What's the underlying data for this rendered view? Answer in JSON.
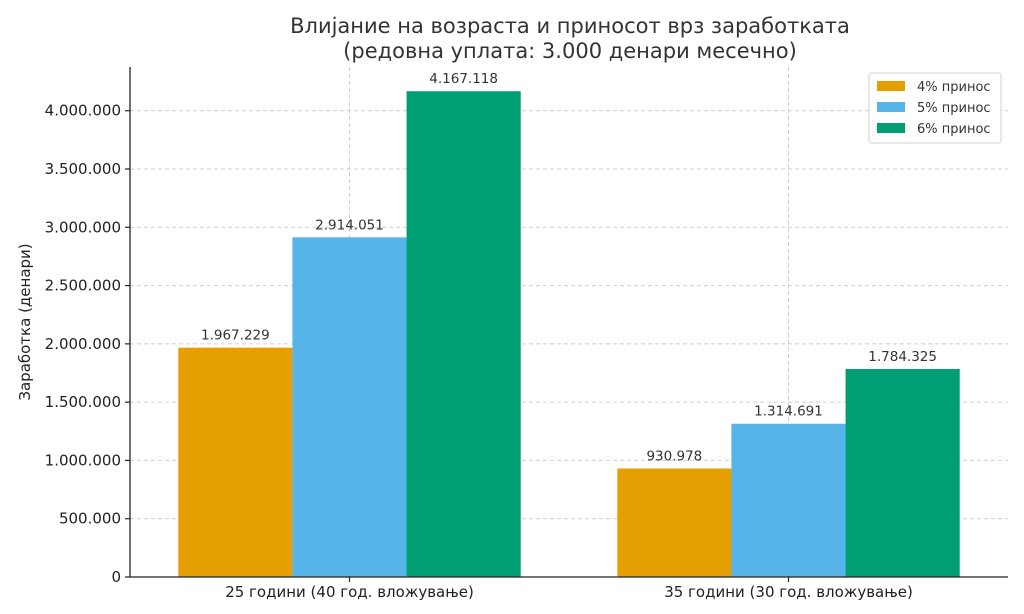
{
  "chart_data": {
    "type": "bar",
    "title_line1": "Влијание на возраста и приносот врз заработката",
    "title_line2": "(редовна уплата: 3.000 денари месечно)",
    "xlabel": "",
    "ylabel": "Заработка (денари)",
    "categories": [
      "25 години (40 год. вложување)",
      "35 години (30 год. вложување)"
    ],
    "series": [
      {
        "name": "4% принос",
        "color": "#E69F00",
        "values": [
          1967229,
          930978
        ],
        "labels": [
          "1.967.229",
          "930.978"
        ]
      },
      {
        "name": "5% принос",
        "color": "#56B4E9",
        "values": [
          2914051,
          1314691
        ],
        "labels": [
          "2.914.051",
          "1.314.691"
        ]
      },
      {
        "name": "6% принос",
        "color": "#009E73",
        "values": [
          4167118,
          1784325
        ],
        "labels": [
          "4.167.118",
          "1.784.325"
        ]
      }
    ],
    "ylim": [
      0,
      4375000
    ],
    "yticks": [
      0,
      500000,
      1000000,
      1500000,
      2000000,
      2500000,
      3000000,
      3500000,
      4000000
    ],
    "ytick_labels": [
      "0",
      "500.000",
      "1.000.000",
      "1.500.000",
      "2.000.000",
      "2.500.000",
      "3.000.000",
      "3.500.000",
      "4.000.000"
    ],
    "grid": true,
    "legend_position": "top-right"
  }
}
